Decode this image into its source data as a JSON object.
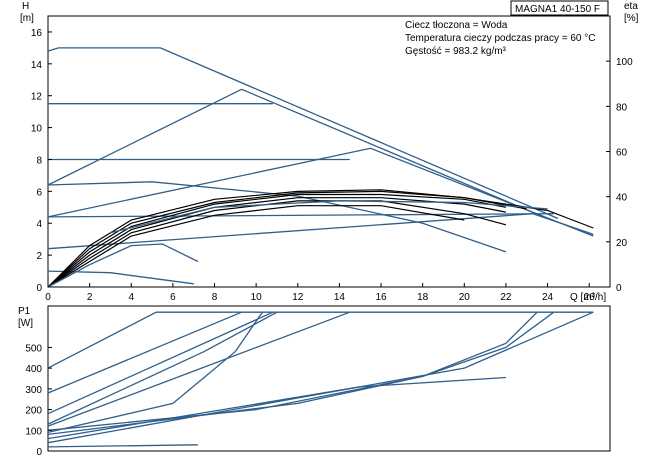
{
  "title": "MAGNA1 40-150 F",
  "info_lines": [
    "Ciecz tłoczona = Woda",
    "Temperatura cieczy podczas pracy = 60 °C",
    "Gęstość = 983.2 kg/m³"
  ],
  "colors": {
    "curve": "#2f5f8a",
    "efficiency": "#000000",
    "axis": "#000000",
    "grid": "#000000"
  },
  "chart_data": [
    {
      "type": "line",
      "name": "head",
      "ylabel": "H",
      "yunit": "[m]",
      "ylabel_right": "eta",
      "yunit_right": "[%]",
      "xlabel": "Q [m³/h]",
      "xlim": [
        0,
        27
      ],
      "ylim": [
        0,
        17
      ],
      "xticks": [
        "0",
        "2",
        "4",
        "6",
        "8",
        "10",
        "12",
        "14",
        "16",
        "18",
        "20",
        "22",
        "24",
        "26"
      ],
      "yticks": [
        "0",
        "2",
        "4",
        "6",
        "8",
        "10",
        "12",
        "14",
        "16"
      ],
      "y2lim": [
        0,
        120
      ],
      "y2ticks": [
        "0",
        "20",
        "40",
        "60",
        "80",
        "100"
      ],
      "grid": false,
      "series": [
        {
          "values": [
            [
              0,
              14.8
            ],
            [
              0.5,
              15.0
            ],
            [
              5.4,
              15.0
            ],
            [
              24.5,
              4.3
            ]
          ]
        },
        {
          "values": [
            [
              0,
              6.4
            ],
            [
              9.3,
              12.4
            ],
            [
              23.8,
              4.4
            ]
          ]
        },
        {
          "values": [
            [
              0,
              11.5
            ],
            [
              10.8,
              11.5
            ]
          ]
        },
        {
          "values": [
            [
              0,
              8.0
            ],
            [
              14.5,
              8.0
            ]
          ]
        },
        {
          "values": [
            [
              0,
              4.4
            ],
            [
              15.5,
              8.7
            ],
            [
              26.2,
              3.2
            ]
          ]
        },
        {
          "values": [
            [
              0,
              2.4
            ],
            [
              23.3,
              4.6
            ],
            [
              26.2,
              3.3
            ]
          ]
        },
        {
          "values": [
            [
              0,
              4.4
            ],
            [
              24.3,
              4.6
            ]
          ]
        },
        {
          "values": [
            [
              0,
              6.4
            ],
            [
              5,
              6.6
            ],
            [
              12,
              5.7
            ],
            [
              18,
              4.0
            ],
            [
              22,
              2.2
            ]
          ]
        },
        {
          "values": [
            [
              0,
              1.0
            ],
            [
              3,
              0.9
            ],
            [
              7,
              0.2
            ]
          ]
        },
        {
          "values": [
            [
              0,
              0
            ],
            [
              2,
              2.6
            ],
            [
              4,
              4.2
            ],
            [
              8,
              5.5
            ],
            [
              12,
              6.0
            ],
            [
              16,
              6.1
            ],
            [
              20,
              5.6
            ],
            [
              24,
              4.8
            ],
            [
              26.2,
              3.7
            ]
          ]
        },
        {
          "values": [
            [
              0,
              0
            ],
            [
              2,
              2.4
            ],
            [
              4,
              4.0
            ],
            [
              8,
              5.3
            ],
            [
              12,
              5.9
            ],
            [
              16,
              6.0
            ],
            [
              20,
              5.6
            ],
            [
              23,
              4.9
            ]
          ]
        },
        {
          "values": [
            [
              0,
              0
            ],
            [
              2,
              2.2
            ],
            [
              4,
              3.8
            ],
            [
              8,
              5.2
            ],
            [
              12,
              5.8
            ],
            [
              16,
              5.8
            ],
            [
              20,
              5.5
            ],
            [
              22,
              5.0
            ]
          ]
        },
        {
          "values": [
            [
              0,
              0
            ],
            [
              2,
              2.0
            ],
            [
              4,
              3.6
            ],
            [
              8,
              5.0
            ],
            [
              12,
              5.6
            ],
            [
              16,
              5.6
            ],
            [
              20,
              5.2
            ],
            [
              22,
              4.7
            ]
          ]
        },
        {
          "values": [
            [
              0,
              0
            ],
            [
              2,
              1.8
            ],
            [
              4,
              3.4
            ],
            [
              8,
              4.8
            ],
            [
              12,
              5.4
            ],
            [
              16,
              5.4
            ],
            [
              20,
              4.6
            ],
            [
              22,
              3.9
            ]
          ]
        },
        {
          "values": [
            [
              0,
              0
            ],
            [
              2,
              1.6
            ],
            [
              4,
              3.2
            ],
            [
              8,
              4.5
            ],
            [
              12,
              5.1
            ],
            [
              16,
              5.1
            ],
            [
              20,
              4.2
            ]
          ]
        },
        {
          "values": [
            [
              0,
              0
            ],
            [
              2,
              1.4
            ],
            [
              4,
              2.6
            ],
            [
              5.5,
              2.7
            ],
            [
              7.2,
              1.6
            ]
          ]
        },
        {
          "values": [
            [
              3,
              3.4
            ],
            [
              8,
              5.0
            ],
            [
              14,
              5.4
            ],
            [
              20,
              5.3
            ],
            [
              24,
              4.9
            ]
          ]
        }
      ]
    },
    {
      "type": "line",
      "name": "power",
      "ylabel": "P1",
      "yunit": "[W]",
      "xlim": [
        0,
        27
      ],
      "ylim": [
        0,
        700
      ],
      "yticks": [
        "0",
        "100",
        "200",
        "300",
        "400",
        "500"
      ],
      "grid": false,
      "series": [
        {
          "values": [
            [
              0,
              400
            ],
            [
              5.2,
              670
            ],
            [
              26.2,
              670
            ]
          ]
        },
        {
          "values": [
            [
              0,
              280
            ],
            [
              9.3,
              670
            ]
          ]
        },
        {
          "values": [
            [
              0,
              180
            ],
            [
              10.8,
              670
            ]
          ]
        },
        {
          "values": [
            [
              0,
              120
            ],
            [
              14.5,
              670
            ]
          ]
        },
        {
          "values": [
            [
              0,
              100
            ],
            [
              10,
              200
            ],
            [
              18,
              360
            ],
            [
              22,
              520
            ],
            [
              23.5,
              670
            ]
          ]
        },
        {
          "values": [
            [
              0,
              80
            ],
            [
              12,
              230
            ],
            [
              18,
              360
            ],
            [
              22,
              500
            ],
            [
              24.3,
              670
            ]
          ]
        },
        {
          "values": [
            [
              0,
              60
            ],
            [
              15,
              310
            ],
            [
              22,
              355
            ]
          ]
        },
        {
          "values": [
            [
              0,
              40
            ],
            [
              20,
              400
            ],
            [
              26.2,
              670
            ]
          ]
        },
        {
          "values": [
            [
              0,
              20
            ],
            [
              7.2,
              30
            ]
          ]
        },
        {
          "values": [
            [
              0,
              130
            ],
            [
              7.5,
              480
            ],
            [
              11,
              670
            ]
          ]
        },
        {
          "values": [
            [
              0,
              90
            ],
            [
              6,
              230
            ],
            [
              9,
              480
            ],
            [
              10.3,
              670
            ]
          ]
        }
      ]
    }
  ]
}
